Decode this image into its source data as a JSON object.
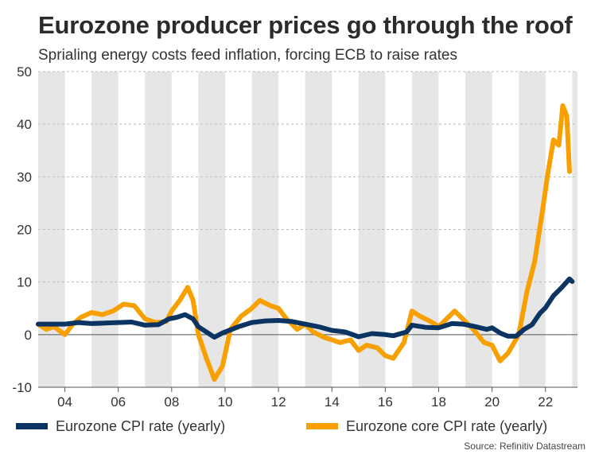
{
  "header": {
    "title": "Eurozone producer prices go through the roof",
    "subtitle": "Sprialing energy costs feed inflation, forcing ECB to raise rates"
  },
  "source": "Source: Refinitiv Datastream",
  "chart_data": {
    "type": "line",
    "xlim": [
      2003.0,
      2023.2
    ],
    "ylim": [
      -10,
      50
    ],
    "y_ticks": [
      -10,
      0,
      10,
      20,
      30,
      40,
      50
    ],
    "x_ticks": [
      {
        "year": 2004,
        "label": "04"
      },
      {
        "year": 2006,
        "label": "06"
      },
      {
        "year": 2008,
        "label": "08"
      },
      {
        "year": 2010,
        "label": "10"
      },
      {
        "year": 2012,
        "label": "12"
      },
      {
        "year": 2014,
        "label": "14"
      },
      {
        "year": 2016,
        "label": "16"
      },
      {
        "year": 2018,
        "label": "18"
      },
      {
        "year": 2020,
        "label": "20"
      },
      {
        "year": 2022,
        "label": "22"
      }
    ],
    "shaded_bands": [
      [
        2003,
        2004
      ],
      [
        2005,
        2006
      ],
      [
        2007,
        2008
      ],
      [
        2009,
        2010
      ],
      [
        2011,
        2012
      ],
      [
        2013,
        2014
      ],
      [
        2015,
        2016
      ],
      [
        2017,
        2018
      ],
      [
        2019,
        2020
      ],
      [
        2021,
        2022
      ],
      [
        2023,
        2023.2
      ]
    ],
    "grid": "horizontal dashed",
    "legend_position": "bottom",
    "series": [
      {
        "name": "Eurozone CPI rate (yearly)",
        "color": "#0b3463",
        "points": [
          [
            2003.0,
            2.0
          ],
          [
            2003.5,
            2.0
          ],
          [
            2004.0,
            2.0
          ],
          [
            2004.5,
            2.3
          ],
          [
            2005.0,
            2.1
          ],
          [
            2005.5,
            2.2
          ],
          [
            2006.0,
            2.3
          ],
          [
            2006.5,
            2.4
          ],
          [
            2007.0,
            1.8
          ],
          [
            2007.5,
            1.9
          ],
          [
            2007.9,
            3.0
          ],
          [
            2008.2,
            3.3
          ],
          [
            2008.5,
            3.8
          ],
          [
            2008.8,
            3.0
          ],
          [
            2009.0,
            1.5
          ],
          [
            2009.3,
            0.5
          ],
          [
            2009.6,
            -0.5
          ],
          [
            2009.9,
            0.3
          ],
          [
            2010.5,
            1.5
          ],
          [
            2011.0,
            2.3
          ],
          [
            2011.5,
            2.6
          ],
          [
            2012.0,
            2.7
          ],
          [
            2012.5,
            2.5
          ],
          [
            2013.0,
            2.0
          ],
          [
            2013.5,
            1.5
          ],
          [
            2014.0,
            0.8
          ],
          [
            2014.5,
            0.5
          ],
          [
            2015.0,
            -0.4
          ],
          [
            2015.5,
            0.2
          ],
          [
            2016.0,
            0.0
          ],
          [
            2016.3,
            -0.2
          ],
          [
            2016.8,
            0.5
          ],
          [
            2017.0,
            1.8
          ],
          [
            2017.5,
            1.4
          ],
          [
            2018.0,
            1.3
          ],
          [
            2018.5,
            2.1
          ],
          [
            2018.9,
            2.0
          ],
          [
            2019.3,
            1.6
          ],
          [
            2019.8,
            1.0
          ],
          [
            2020.0,
            1.3
          ],
          [
            2020.3,
            0.3
          ],
          [
            2020.6,
            -0.3
          ],
          [
            2020.9,
            -0.3
          ],
          [
            2021.2,
            1.0
          ],
          [
            2021.5,
            1.9
          ],
          [
            2021.8,
            4.1
          ],
          [
            2022.0,
            5.1
          ],
          [
            2022.3,
            7.4
          ],
          [
            2022.6,
            8.9
          ],
          [
            2022.9,
            10.6
          ],
          [
            2023.0,
            10.1
          ]
        ]
      },
      {
        "name": "Eurozone core CPI rate (yearly)",
        "color": "#f7a000",
        "points": [
          [
            2003.0,
            2.0
          ],
          [
            2003.3,
            1.0
          ],
          [
            2003.6,
            1.5
          ],
          [
            2004.0,
            0.0
          ],
          [
            2004.3,
            2.0
          ],
          [
            2004.6,
            3.3
          ],
          [
            2005.0,
            4.2
          ],
          [
            2005.4,
            3.8
          ],
          [
            2005.8,
            4.5
          ],
          [
            2006.2,
            5.8
          ],
          [
            2006.6,
            5.5
          ],
          [
            2007.0,
            3.0
          ],
          [
            2007.4,
            2.3
          ],
          [
            2007.8,
            2.5
          ],
          [
            2008.0,
            4.5
          ],
          [
            2008.3,
            6.5
          ],
          [
            2008.6,
            9.0
          ],
          [
            2008.8,
            6.5
          ],
          [
            2009.0,
            0.0
          ],
          [
            2009.3,
            -4.5
          ],
          [
            2009.6,
            -8.5
          ],
          [
            2009.9,
            -6.0
          ],
          [
            2010.2,
            1.0
          ],
          [
            2010.6,
            3.5
          ],
          [
            2011.0,
            5.0
          ],
          [
            2011.3,
            6.5
          ],
          [
            2011.7,
            5.5
          ],
          [
            2012.0,
            5.0
          ],
          [
            2012.3,
            3.0
          ],
          [
            2012.7,
            1.0
          ],
          [
            2013.0,
            2.0
          ],
          [
            2013.3,
            0.5
          ],
          [
            2013.7,
            -0.5
          ],
          [
            2014.0,
            -1.0
          ],
          [
            2014.3,
            -1.5
          ],
          [
            2014.7,
            -1.0
          ],
          [
            2015.0,
            -3.0
          ],
          [
            2015.3,
            -2.0
          ],
          [
            2015.7,
            -2.5
          ],
          [
            2016.0,
            -4.0
          ],
          [
            2016.3,
            -4.5
          ],
          [
            2016.7,
            -1.5
          ],
          [
            2017.0,
            4.5
          ],
          [
            2017.3,
            3.5
          ],
          [
            2017.7,
            2.5
          ],
          [
            2018.0,
            1.5
          ],
          [
            2018.3,
            3.0
          ],
          [
            2018.6,
            4.5
          ],
          [
            2018.9,
            3.0
          ],
          [
            2019.3,
            1.0
          ],
          [
            2019.7,
            -1.5
          ],
          [
            2020.0,
            -2.0
          ],
          [
            2020.3,
            -5.0
          ],
          [
            2020.6,
            -3.5
          ],
          [
            2021.0,
            0.0
          ],
          [
            2021.3,
            8.0
          ],
          [
            2021.6,
            14.0
          ],
          [
            2021.9,
            24.0
          ],
          [
            2022.1,
            31.0
          ],
          [
            2022.3,
            37.0
          ],
          [
            2022.5,
            36.0
          ],
          [
            2022.65,
            43.5
          ],
          [
            2022.8,
            41.5
          ],
          [
            2022.9,
            31.0
          ]
        ]
      }
    ]
  }
}
